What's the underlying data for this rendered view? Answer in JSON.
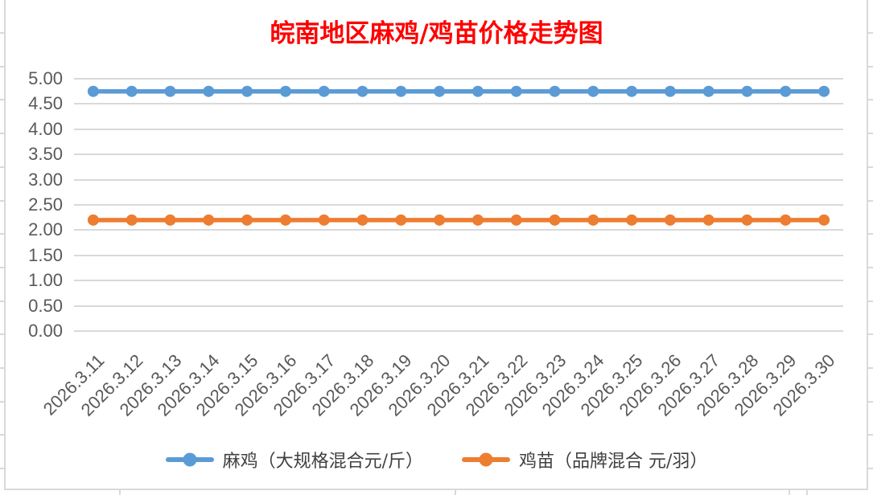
{
  "chart_data": {
    "type": "line",
    "title": "皖南地区麻鸡/鸡苗价格走势图",
    "title_color": "#FF0000",
    "x": [
      "2026.3.11",
      "2026.3.12",
      "2026.3.13",
      "2026.3.14",
      "2026.3.15",
      "2026.3.16",
      "2026.3.17",
      "2026.3.18",
      "2026.3.19",
      "2026.3.20",
      "2026.3.21",
      "2026.3.22",
      "2026.3.23",
      "2026.3.24",
      "2026.3.25",
      "2026.3.26",
      "2026.3.27",
      "2026.3.28",
      "2026.3.29",
      "2026.3.30"
    ],
    "series": [
      {
        "name": "麻鸡（大规格混合元/斤）",
        "color": "#5B9BD5",
        "values": [
          4.75,
          4.75,
          4.75,
          4.75,
          4.75,
          4.75,
          4.75,
          4.75,
          4.75,
          4.75,
          4.75,
          4.75,
          4.75,
          4.75,
          4.75,
          4.75,
          4.75,
          4.75,
          4.75,
          4.75
        ]
      },
      {
        "name": "鸡苗（品牌混合 元/羽）",
        "color": "#ED7D31",
        "values": [
          2.2,
          2.2,
          2.2,
          2.2,
          2.2,
          2.2,
          2.2,
          2.2,
          2.2,
          2.2,
          2.2,
          2.2,
          2.2,
          2.2,
          2.2,
          2.2,
          2.2,
          2.2,
          2.2,
          2.2
        ]
      }
    ],
    "ylim": [
      0,
      5
    ],
    "ytick_step": 0.5,
    "yticks": [
      "5.00",
      "4.50",
      "4.00",
      "3.50",
      "3.00",
      "2.50",
      "2.00",
      "1.50",
      "1.00",
      "0.50",
      "0.00"
    ],
    "grid": true,
    "legend_position": "bottom",
    "gridline_color": "#D9D9D9",
    "axis_label_color": "#595959"
  }
}
